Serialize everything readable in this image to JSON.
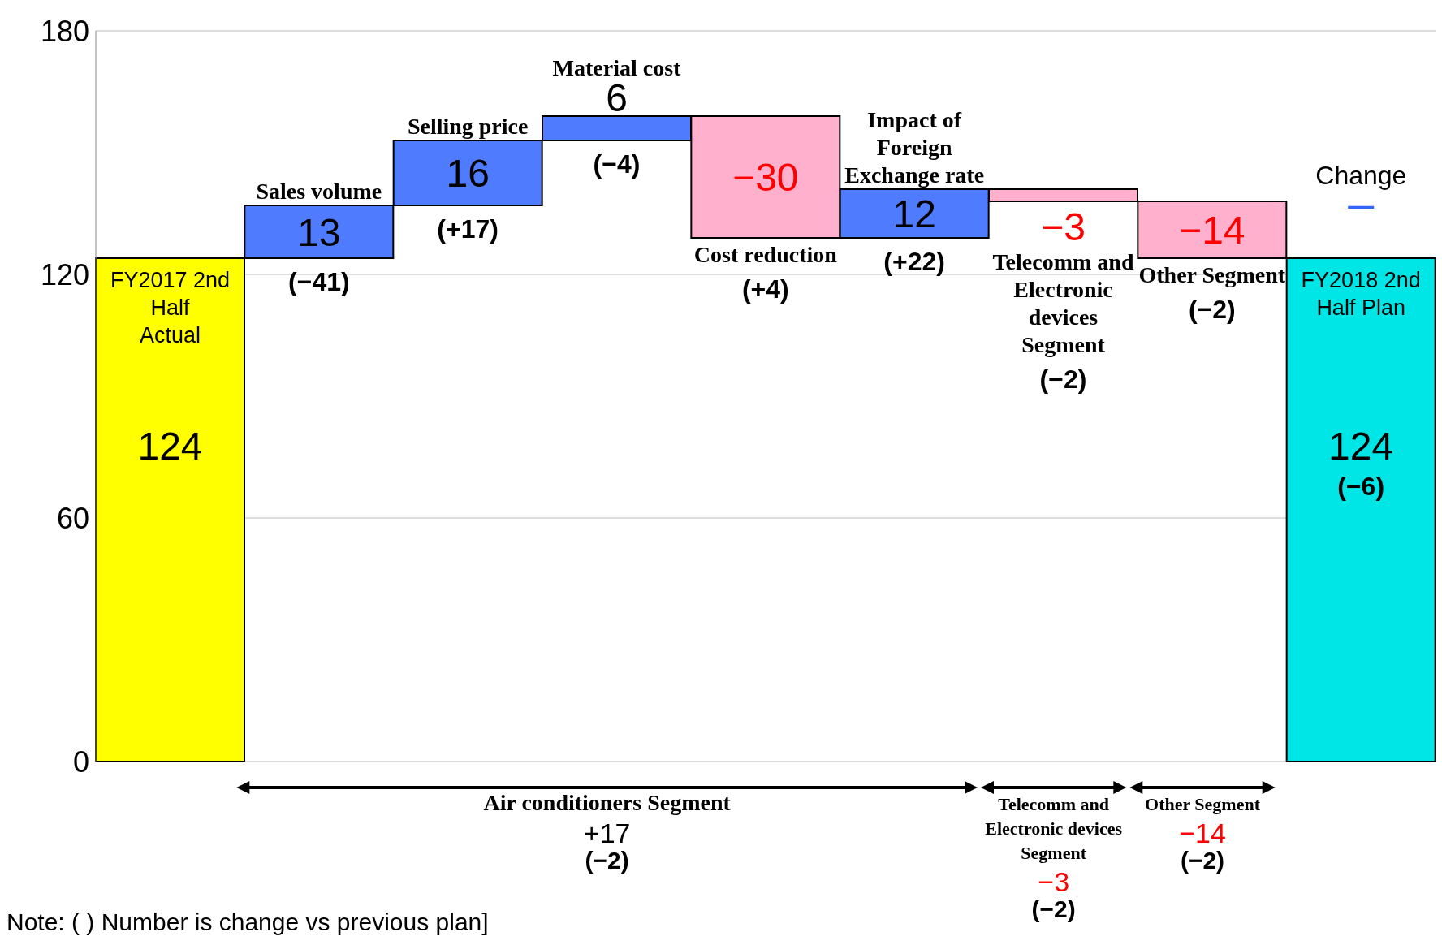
{
  "chart_data": {
    "type": "bar",
    "categories": [
      "FY2017 2nd Half Actual",
      "Sales volume",
      "Selling price",
      "Material cost",
      "Cost reduction",
      "Impact of Foreign Exchange rate",
      "Telecomm and Electronic devices Segment",
      "Other Segment",
      "FY2018 2nd Half Plan"
    ],
    "values": [
      124,
      13,
      16,
      6,
      -30,
      12,
      -3,
      -14,
      124
    ],
    "base": [
      0,
      124,
      137,
      153,
      159,
      129,
      141,
      138,
      0
    ],
    "colors": [
      "#ffff00",
      "#4f7cff",
      "#4f7cff",
      "#4f7cff",
      "#ffb0cc",
      "#4f7cff",
      "#ffb0cc",
      "#ffb0cc",
      "#00e5e5"
    ],
    "value_labels": [
      "124",
      "13",
      "16",
      "6",
      "−30",
      "12",
      "−3",
      "−14",
      "124"
    ],
    "ylim": [
      0,
      180
    ],
    "yticks": [
      0,
      60,
      120,
      180
    ],
    "grid": "y",
    "tick_labels": "y",
    "annotations": [
      "Change",
      "—",
      "Air conditioners Segment",
      "+17",
      "(−2)",
      "Telecomm and Electronic devices Segment",
      "−3",
      "(−2)",
      "Other Segment",
      "−14",
      "(−2)",
      "Note: ( ) Number is change vs previous plan]",
      "(−41)",
      "(+17)",
      "(−4)",
      "(+4)",
      "(+22)",
      "(−2)",
      "(−2)",
      "(−6)"
    ]
  }
}
